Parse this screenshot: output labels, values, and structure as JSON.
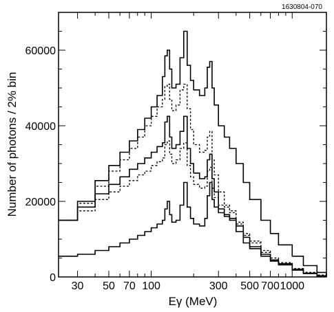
{
  "figure_id": "1630804-070",
  "chart_data": {
    "type": "line",
    "xlabel": "Eγ (MeV)",
    "ylabel": "Number of photons / 2% bin",
    "x_scale": "log",
    "xlim": [
      22,
      1750
    ],
    "ylim": [
      0,
      70000
    ],
    "x_ticks": [
      {
        "value": 30,
        "label": "30"
      },
      {
        "value": 50,
        "label": "50"
      },
      {
        "value": 70,
        "label": "70"
      },
      {
        "value": 100,
        "label": "100"
      },
      {
        "value": 300,
        "label": "300"
      },
      {
        "value": 500,
        "label": "500"
      },
      {
        "value": 700,
        "label": "700"
      },
      {
        "value": 1000,
        "label": "1000"
      }
    ],
    "y_ticks": [
      {
        "value": 0,
        "label": "0"
      },
      {
        "value": 20000,
        "label": "20000"
      },
      {
        "value": 40000,
        "label": "40000"
      },
      {
        "value": 60000,
        "label": "60000"
      }
    ],
    "grid": false,
    "series": [
      {
        "style": "solid",
        "x": [
          22,
          30,
          40,
          50,
          60,
          70,
          80,
          90,
          100,
          110,
          120,
          125,
          130,
          135,
          140,
          150,
          160,
          170,
          180,
          190,
          200,
          220,
          240,
          250,
          260,
          270,
          280,
          300,
          330,
          360,
          400,
          450,
          500,
          600,
          700,
          800,
          1000,
          1200,
          1500,
          1750
        ],
        "y": [
          15000,
          20000,
          25500,
          29500,
          33000,
          36000,
          39000,
          42000,
          45000,
          48000,
          53000,
          58500,
          60000,
          55000,
          50000,
          51000,
          58000,
          65000,
          56000,
          52000,
          49500,
          48000,
          50000,
          55500,
          57000,
          50000,
          45500,
          40000,
          37000,
          34000,
          30000,
          25000,
          20500,
          15000,
          11500,
          8500,
          5500,
          3000,
          1200,
          300
        ]
      },
      {
        "style": "dashed",
        "x": [
          22,
          30,
          40,
          50,
          60,
          70,
          80,
          90,
          100,
          110,
          120,
          125,
          130,
          135,
          140,
          150,
          160,
          170,
          180,
          190,
          200,
          220,
          240,
          250,
          260,
          270,
          280,
          300,
          330,
          360,
          400,
          450,
          500,
          600,
          700,
          800,
          1000,
          1200,
          1500,
          1750
        ],
        "y": [
          15000,
          19500,
          24000,
          28000,
          31000,
          34000,
          37000,
          40000,
          42500,
          45000,
          47000,
          50500,
          51000,
          47000,
          44000,
          45500,
          49500,
          51000,
          44500,
          39000,
          35000,
          33000,
          33500,
          37000,
          38500,
          31000,
          27000,
          22500,
          19000,
          17000,
          14000,
          11500,
          9500,
          7000,
          5000,
          3800,
          2200,
          1200,
          500,
          100
        ]
      },
      {
        "style": "solid",
        "x": [
          22,
          30,
          40,
          50,
          60,
          70,
          80,
          90,
          100,
          110,
          120,
          125,
          130,
          135,
          140,
          150,
          160,
          170,
          180,
          190,
          200,
          220,
          240,
          250,
          260,
          270,
          280,
          300,
          330,
          360,
          400,
          450,
          500,
          600,
          700,
          800,
          1000,
          1200,
          1500,
          1750
        ],
        "y": [
          15000,
          18500,
          22000,
          24500,
          26500,
          28500,
          30000,
          31500,
          33000,
          34500,
          35500,
          41000,
          42500,
          37000,
          34000,
          35000,
          38500,
          42500,
          34000,
          30000,
          27500,
          26000,
          26500,
          31000,
          32500,
          26000,
          22500,
          18000,
          16500,
          15000,
          12000,
          9000,
          7500,
          5500,
          4200,
          3200,
          1800,
          900,
          300,
          100
        ]
      },
      {
        "style": "dashed",
        "x": [
          22,
          30,
          40,
          50,
          60,
          70,
          80,
          90,
          100,
          110,
          120,
          125,
          130,
          135,
          140,
          150,
          160,
          170,
          180,
          190,
          200,
          220,
          240,
          250,
          260,
          270,
          280,
          300,
          330,
          360,
          400,
          450,
          500,
          600,
          700,
          800,
          1000,
          1200,
          1500,
          1750
        ],
        "y": [
          15000,
          17500,
          20500,
          22500,
          24000,
          25500,
          27000,
          28000,
          29500,
          30500,
          31500,
          35000,
          36000,
          32500,
          30000,
          31000,
          34000,
          35500,
          29500,
          26500,
          24500,
          23500,
          24000,
          28000,
          29000,
          23500,
          21000,
          19000,
          18500,
          17500,
          14500,
          11000,
          9000,
          6500,
          5000,
          3800,
          2200,
          1200,
          500,
          100
        ]
      },
      {
        "style": "solid",
        "x": [
          22,
          30,
          40,
          50,
          60,
          70,
          80,
          90,
          100,
          110,
          120,
          125,
          130,
          135,
          140,
          150,
          160,
          170,
          180,
          190,
          200,
          220,
          240,
          250,
          260,
          270,
          280,
          300,
          330,
          360,
          400,
          450,
          500,
          600,
          700,
          800,
          1000,
          1200,
          1500,
          1750
        ],
        "y": [
          5500,
          6000,
          7000,
          8000,
          9000,
          10000,
          11000,
          12000,
          13000,
          14000,
          15000,
          18000,
          20000,
          16500,
          14500,
          15000,
          19000,
          25000,
          18500,
          15500,
          14000,
          13500,
          15500,
          21500,
          25000,
          20500,
          18500,
          17000,
          16000,
          15500,
          13500,
          10500,
          8000,
          6000,
          4500,
          3500,
          2000,
          1000,
          300,
          100
        ]
      }
    ]
  }
}
